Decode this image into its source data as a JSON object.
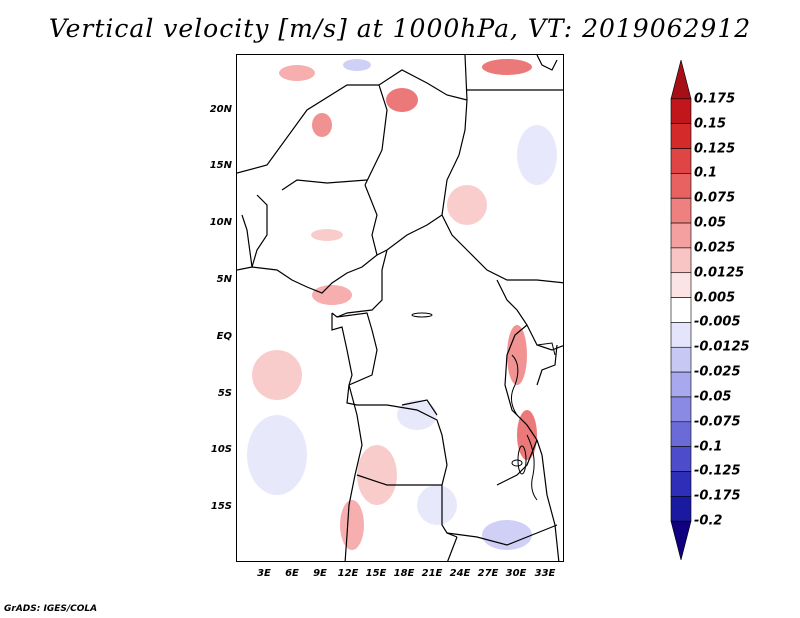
{
  "title": "Vertical velocity [m/s] at 1000hPa, VT: 2019062912",
  "footer": "GrADS: IGES/COLA",
  "lat_labels": [
    "20N",
    "15N",
    "10N",
    "5N",
    "EQ",
    "5S",
    "10S",
    "15S"
  ],
  "lon_labels": [
    "3E",
    "6E",
    "9E",
    "12E",
    "15E",
    "18E",
    "21E",
    "24E",
    "27E",
    "30E",
    "33E"
  ],
  "colorbar": {
    "labels": [
      "0.175",
      "0.15",
      "0.125",
      "0.1",
      "0.075",
      "0.05",
      "0.025",
      "0.0125",
      "0.005",
      "-0.005",
      "-0.0125",
      "-0.025",
      "-0.05",
      "-0.075",
      "-0.1",
      "-0.125",
      "-0.175",
      "-0.2"
    ],
    "colors": [
      "#a50f15",
      "#c0161c",
      "#d42a2a",
      "#e04545",
      "#e86262",
      "#ef8080",
      "#f5a0a0",
      "#f9c4c4",
      "#fde4e4",
      "#ffffff",
      "#e4e4fb",
      "#c8c8f5",
      "#a8a8ee",
      "#8a8ae4",
      "#6b6bd8",
      "#4d4dcc",
      "#2e2eb8",
      "#1a1aa0",
      "#100080"
    ]
  }
}
